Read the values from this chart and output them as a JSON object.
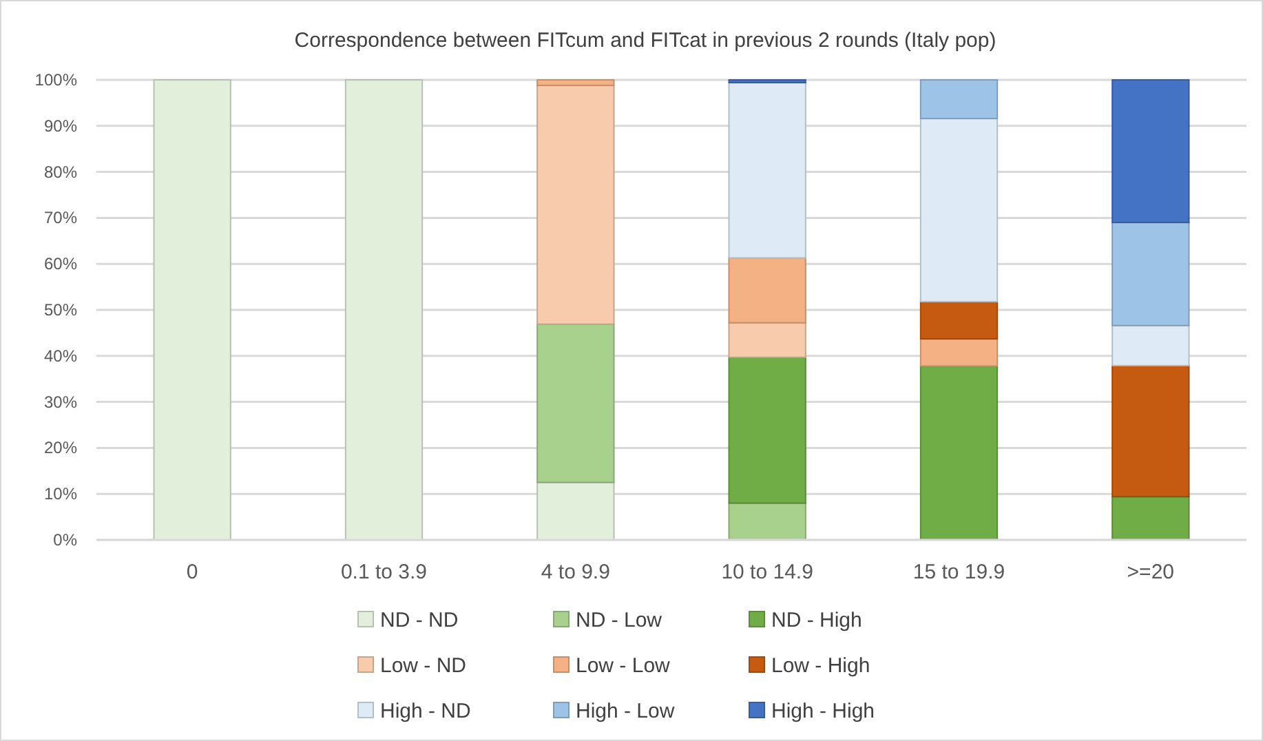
{
  "chart_data": {
    "type": "bar",
    "title": "Correspondence between FITcum and FITcat in previous 2 rounds (Italy pop)",
    "categories": [
      "0",
      "0.1 to 3.9",
      "4 to 9.9",
      "10 to 14.9",
      "15 to 19.9",
      ">=20"
    ],
    "stacked": true,
    "grid": "y",
    "legend": "bottom",
    "ylim": [
      0,
      100
    ],
    "yticks": [
      {
        "value": 0,
        "label": "0%"
      },
      {
        "value": 10,
        "label": "10%"
      },
      {
        "value": 20,
        "label": "20%"
      },
      {
        "value": 30,
        "label": "30%"
      },
      {
        "value": 40,
        "label": "40%"
      },
      {
        "value": 50,
        "label": "50%"
      },
      {
        "value": 60,
        "label": "60%"
      },
      {
        "value": 70,
        "label": "70%"
      },
      {
        "value": 80,
        "label": "80%"
      },
      {
        "value": 90,
        "label": "90%"
      },
      {
        "value": 100,
        "label": "100%"
      }
    ],
    "series": [
      {
        "name": "ND - ND",
        "color": "#e2efda",
        "values": [
          100,
          100,
          12.5,
          0,
          0,
          0
        ]
      },
      {
        "name": "ND - Low",
        "color": "#a9d18e",
        "values": [
          0,
          0,
          34.4,
          8,
          0,
          0
        ]
      },
      {
        "name": "ND - High",
        "color": "#70ad47",
        "values": [
          0,
          0,
          0,
          31.7,
          37.8,
          9.4
        ]
      },
      {
        "name": "Low - ND",
        "color": "#f8cbad",
        "values": [
          0,
          0,
          51.9,
          7.5,
          0,
          0
        ]
      },
      {
        "name": "Low - Low",
        "color": "#f4b183",
        "values": [
          0,
          0,
          1.2,
          14.1,
          5.9,
          0
        ]
      },
      {
        "name": "Low - High",
        "color": "#c55a11",
        "values": [
          0,
          0,
          0,
          0,
          8.1,
          28.5
        ]
      },
      {
        "name": "High - ND",
        "color": "#deebf7",
        "values": [
          0,
          0,
          0,
          38.1,
          39.8,
          8.7
        ]
      },
      {
        "name": "High - Low",
        "color": "#9dc3e6",
        "values": [
          0,
          0,
          0,
          0,
          8.4,
          22.4
        ]
      },
      {
        "name": "High - High",
        "color": "#4472c4",
        "values": [
          0,
          0,
          0,
          0.6,
          0,
          31.0
        ]
      }
    ]
  }
}
